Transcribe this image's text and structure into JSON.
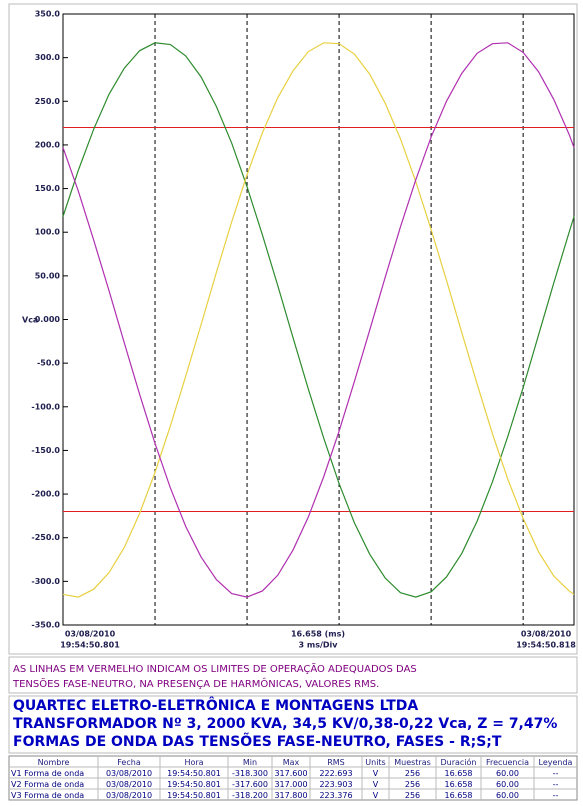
{
  "chart_data": {
    "type": "line",
    "y_label": "Vca",
    "x_start": [
      "03/08/2010",
      "19:54:50.801"
    ],
    "x_end": [
      "03/08/2010",
      "19:54:50.818"
    ],
    "x_span": "16.658 (ms)",
    "x_div": "3 ms/Div",
    "x": [
      0,
      0.5,
      1,
      1.5,
      2,
      2.5,
      3,
      3.5,
      4,
      4.5,
      5,
      5.5,
      6,
      6.5,
      7,
      7.5,
      8,
      8.5,
      9,
      9.5,
      10,
      10.5,
      11,
      11.5,
      12,
      12.5,
      13,
      13.5,
      14,
      14.5,
      15,
      15.5,
      16,
      16.5,
      16.658
    ],
    "xlim": [
      0,
      16.658
    ],
    "xticks": [
      3,
      6,
      9,
      12,
      15
    ],
    "ylim": [
      -350,
      350
    ],
    "yticks": [
      {
        "value": 350,
        "label": "350.0"
      },
      {
        "value": 300,
        "label": "300.0"
      },
      {
        "value": 250,
        "label": "250.0"
      },
      {
        "value": 200,
        "label": "200.0"
      },
      {
        "value": 150,
        "label": "150.0"
      },
      {
        "value": 100,
        "label": "100.0"
      },
      {
        "value": 50,
        "label": "50.00"
      },
      {
        "value": 0,
        "label": "0.000"
      },
      {
        "value": -50,
        "label": "-50.0"
      },
      {
        "value": -100,
        "label": "-100.0"
      },
      {
        "value": -150,
        "label": "-150.0"
      },
      {
        "value": -200,
        "label": "-200.0"
      },
      {
        "value": -250,
        "label": "-250.0"
      },
      {
        "value": -300,
        "label": "-300.0"
      },
      {
        "value": -350,
        "label": "-350.0"
      }
    ],
    "limits": [
      220,
      -220
    ],
    "limit_color": "#e02020",
    "series": [
      {
        "name": "V1",
        "color": "#2e8b2e",
        "values": [
          118,
          171,
          218,
          258,
          288,
          308,
          317,
          315,
          302,
          278,
          244,
          202,
          152,
          97,
          39,
          -21,
          -80,
          -136,
          -188,
          -233,
          -269,
          -296,
          -313,
          -318,
          -312,
          -295,
          -268,
          -231,
          -186,
          -134,
          -78,
          -18,
          42,
          100,
          118
        ]
      },
      {
        "name": "V2",
        "color": "#e8d040",
        "values": [
          -315,
          -318,
          -309,
          -290,
          -261,
          -222,
          -175,
          -122,
          -65,
          -6,
          54,
          112,
          166,
          214,
          254,
          285,
          307,
          317,
          316,
          304,
          281,
          248,
          207,
          158,
          103,
          45,
          -15,
          -74,
          -131,
          -183,
          -228,
          -266,
          -294,
          -311,
          -315
        ]
      },
      {
        "name": "V3",
        "color": "#b030b0",
        "values": [
          197,
          147,
          91,
          33,
          -27,
          -86,
          -142,
          -193,
          -237,
          -272,
          -298,
          -314,
          -318,
          -311,
          -293,
          -264,
          -226,
          -180,
          -128,
          -71,
          -12,
          48,
          106,
          160,
          209,
          250,
          282,
          305,
          316,
          317,
          306,
          284,
          252,
          212,
          197
        ]
      }
    ]
  },
  "note": [
    "AS LINHAS EM VERMELHO INDICAM OS LIMITES DE OPERAÇÃO ADEQUADOS DAS",
    "TENSÕES FASE-NEUTRO, NA PRESENÇA DE HARMÔNICAS, VALORES RMS."
  ],
  "header": [
    "QUARTEC ELETRO-ELETRÔNICA E MONTAGENS LTDA",
    "TRANSFORMADOR Nº 3, 2000 KVA, 34,5 KV/0,38-0,22 Vca, Z = 7,47%",
    "FORMAS DE ONDA DAS TENSÕES FASE-NEUTRO, FASES - R;S;T"
  ],
  "table": {
    "columns": [
      "Nombre",
      "Fecha",
      "Hora",
      "Min",
      "Max",
      "RMS",
      "Units",
      "Muestras",
      "Duración",
      "Frecuencia",
      "Leyenda"
    ],
    "rows": [
      [
        "V1 Forma de onda",
        "03/08/2010",
        "19:54:50.801",
        "-318.300",
        "317.600",
        "222.693",
        "V",
        "256",
        "16.658",
        "60.00",
        "--"
      ],
      [
        "V2 Forma de onda",
        "03/08/2010",
        "19:54:50.801",
        "-317.600",
        "317.000",
        "223.903",
        "V",
        "256",
        "16.658",
        "60.00",
        "--"
      ],
      [
        "V3 Forma de onda",
        "03/08/2010",
        "19:54:50.801",
        "-318.200",
        "317.800",
        "223.376",
        "V",
        "256",
        "16.658",
        "60.00",
        "--"
      ]
    ]
  }
}
